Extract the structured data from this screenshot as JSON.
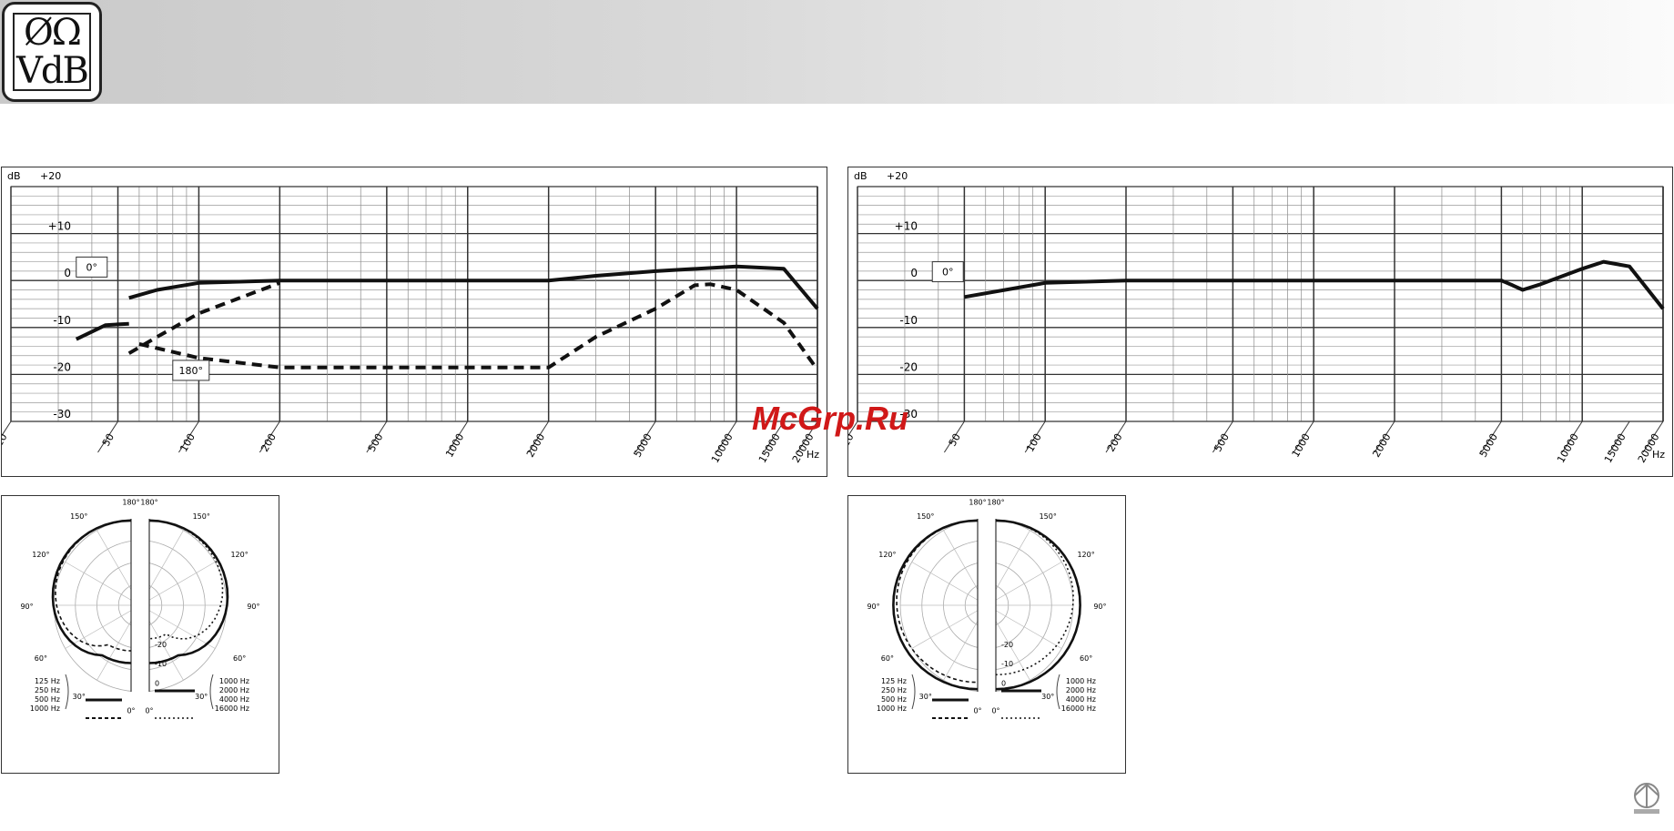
{
  "logo": {
    "line1": "ØΩ",
    "line2": "VdB"
  },
  "watermark": "McGrp.Ru",
  "axis": {
    "db_label": "dB",
    "y_top_label": "+20",
    "y_ticks": [
      "+10",
      "0",
      "-10",
      "-20",
      "-30"
    ],
    "x_ticks": [
      "20",
      "50",
      "100",
      "200",
      "500",
      "1000",
      "2000",
      "5000",
      "10000",
      "15000",
      "20000"
    ],
    "x_unit": "Hz"
  },
  "chart_data": [
    {
      "type": "line",
      "x_scale": "log",
      "xlim": [
        20,
        20000
      ],
      "ylim": [
        -30,
        20
      ],
      "ylabel": "dB",
      "xlabel": "Hz",
      "grid": true,
      "annotations": [
        "0°",
        "180°"
      ],
      "series": [
        {
          "style": "solid",
          "points": [
            [
              55,
              -3.7
            ],
            [
              70,
              -2.0
            ],
            [
              100,
              -0.5
            ],
            [
              200,
              0
            ],
            [
              500,
              0
            ],
            [
              1000,
              0
            ],
            [
              2000,
              0
            ],
            [
              3000,
              1
            ],
            [
              5000,
              2
            ],
            [
              10000,
              3
            ],
            [
              15000,
              2.5
            ],
            [
              20000,
              -6
            ]
          ]
        },
        {
          "style": "dashed",
          "points": [
            [
              55,
              -15.5
            ],
            [
              70,
              -12
            ],
            [
              100,
              -7
            ],
            [
              200,
              -0.5
            ]
          ]
        },
        {
          "style": "dashed",
          "points": [
            [
              60,
              -13.5
            ],
            [
              100,
              -16.5
            ],
            [
              200,
              -18.5
            ],
            [
              500,
              -18.5
            ],
            [
              1000,
              -18.5
            ],
            [
              2000,
              -18.5
            ],
            [
              3000,
              -12
            ],
            [
              5000,
              -6
            ],
            [
              7000,
              -1
            ],
            [
              8000,
              -0.8
            ],
            [
              10000,
              -2
            ],
            [
              15000,
              -9
            ],
            [
              20000,
              -19
            ]
          ]
        },
        {
          "style": "solid",
          "points": [
            [
              35,
              -12.5
            ],
            [
              45,
              -9.5
            ],
            [
              55,
              -9.2
            ]
          ]
        }
      ]
    },
    {
      "type": "line",
      "x_scale": "log",
      "xlim": [
        20,
        20000
      ],
      "ylim": [
        -30,
        20
      ],
      "ylabel": "dB",
      "xlabel": "Hz",
      "grid": true,
      "annotations": [
        "0°"
      ],
      "series": [
        {
          "style": "solid",
          "points": [
            [
              50,
              -3.5
            ],
            [
              100,
              -0.5
            ],
            [
              200,
              0
            ],
            [
              500,
              0
            ],
            [
              1000,
              0
            ],
            [
              2000,
              0
            ],
            [
              5000,
              0
            ],
            [
              5500,
              -1
            ],
            [
              6000,
              -2
            ],
            [
              7000,
              -0.8
            ],
            [
              10000,
              2.5
            ],
            [
              12000,
              4
            ],
            [
              15000,
              3
            ],
            [
              20000,
              -6
            ]
          ]
        }
      ]
    },
    {
      "type": "polar",
      "rings_db": [
        -20,
        -10,
        0
      ],
      "angle_labels": [
        "180°",
        "150°",
        "120°",
        "90°",
        "60°",
        "30°",
        "0°"
      ],
      "legend_left": [
        "125 Hz",
        "250 Hz",
        "500 Hz",
        "1000 Hz"
      ],
      "legend_right": [
        "1000 Hz",
        "2000 Hz",
        "4000 Hz",
        "16000 Hz"
      ],
      "pattern": "cardioid"
    },
    {
      "type": "polar",
      "rings_db": [
        -20,
        -10,
        0
      ],
      "angle_labels": [
        "180°",
        "150°",
        "120°",
        "90°",
        "60°",
        "30°",
        "0°"
      ],
      "legend_left": [
        "125 Hz",
        "250 Hz",
        "500 Hz",
        "1000 Hz"
      ],
      "legend_right": [
        "1000 Hz",
        "2000 Hz",
        "4000 Hz",
        "16000 Hz"
      ],
      "pattern": "omni"
    }
  ]
}
